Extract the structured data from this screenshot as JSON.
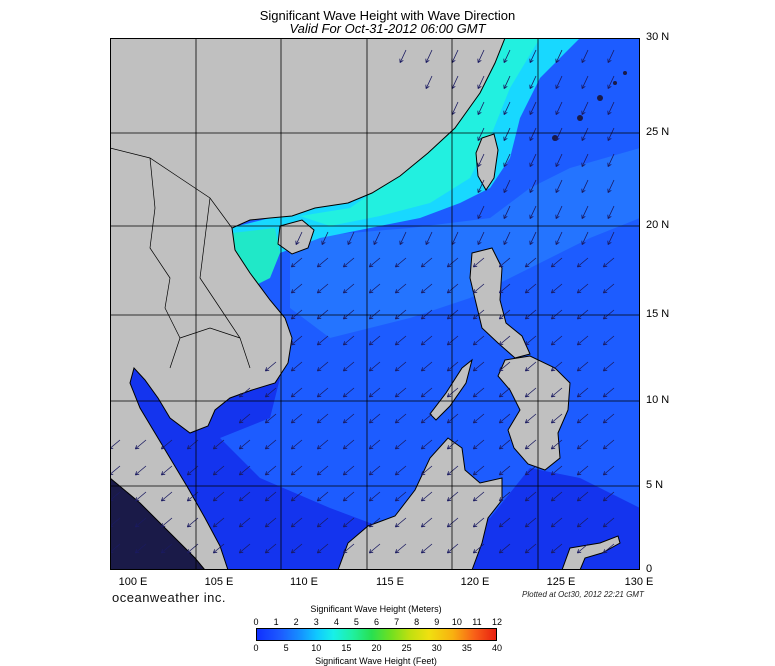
{
  "title": "Significant Wave Height with Wave Direction",
  "subtitle": "Valid For Oct-31-2012 06:00 GMT",
  "brand": "oceanweather inc.",
  "plotted": "Plotted at Oct30, 2012 22:21 GMT",
  "lat_labels": [
    "30 N",
    "25 N",
    "20 N",
    "15 N",
    "10 N",
    "5 N",
    "0"
  ],
  "lon_labels": [
    "100 E",
    "105 E",
    "110 E",
    "115 E",
    "120 E",
    "125 E",
    "130 E"
  ],
  "legend": {
    "meters_title": "Significant Wave Height (Meters)",
    "feet_title": "Significant Wave Height (Feet)",
    "meters_ticks": [
      "0",
      "1",
      "2",
      "3",
      "4",
      "5",
      "6",
      "7",
      "8",
      "9",
      "10",
      "11",
      "12"
    ],
    "feet_ticks": [
      "0",
      "5",
      "10",
      "15",
      "20",
      "25",
      "30",
      "35",
      "40"
    ]
  },
  "colors": {
    "land": "#c0c0c0",
    "sea_low": "#1030ff",
    "sea_mid": "#1d5cff",
    "sea_high": "#18f0e8",
    "arrow": "#1a1a60",
    "grid": "#000000"
  }
}
